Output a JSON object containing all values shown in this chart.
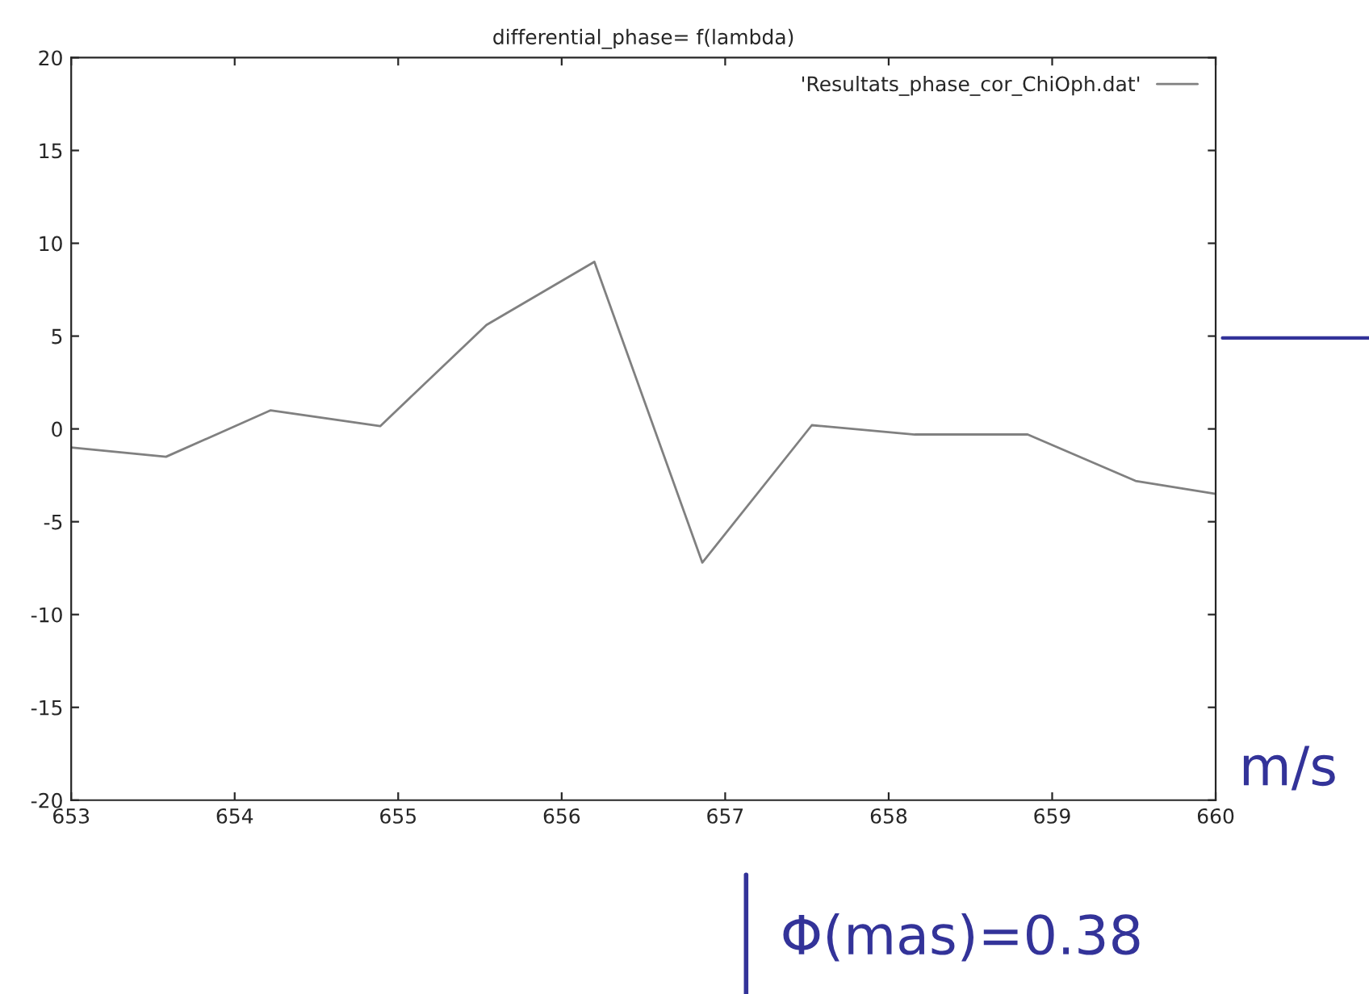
{
  "chart_data": {
    "type": "line",
    "title": "differential_phase= f(lambda)",
    "x": [
      653.0,
      653.58,
      654.22,
      654.89,
      655.54,
      656.2,
      656.86,
      657.53,
      658.16,
      658.85,
      659.51,
      660.0
    ],
    "series": [
      {
        "name": "'Resultats_phase_cor_ChiOph.dat'",
        "color": "#808080",
        "values": [
          -1.0,
          -1.5,
          1.0,
          0.15,
          5.6,
          9.0,
          -7.2,
          0.2,
          -0.3,
          -0.3,
          -2.8,
          -3.5
        ]
      }
    ],
    "xlim": [
      653,
      660
    ],
    "xticks": [
      653,
      654,
      655,
      656,
      657,
      658,
      659,
      660
    ],
    "ylim": [
      -20,
      20
    ],
    "yticks": [
      -20,
      -15,
      -10,
      -5,
      0,
      5,
      10,
      15,
      20
    ],
    "grid": false,
    "legend": "top right",
    "marker": "none",
    "line_style": "solid",
    "annotations": [
      "m/s",
      "Φ(mas)=0.38"
    ]
  }
}
